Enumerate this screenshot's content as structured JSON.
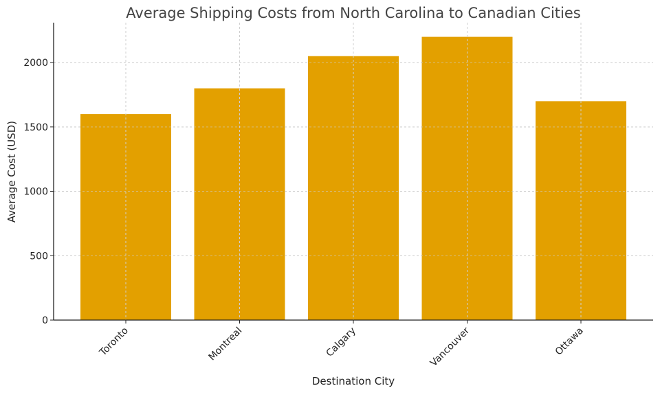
{
  "chart_data": {
    "type": "bar",
    "title": "Average Shipping Costs from North Carolina to Canadian Cities",
    "xlabel": "Destination City",
    "ylabel": "Average Cost (USD)",
    "categories": [
      "Toronto",
      "Montreal",
      "Calgary",
      "Vancouver",
      "Ottawa"
    ],
    "values": [
      1600,
      1800,
      2050,
      2200,
      1700
    ],
    "ylim": [
      0,
      2310
    ],
    "yticks": [
      0,
      500,
      1000,
      1500,
      2000
    ],
    "grid": true,
    "bar_color": "#e3a000",
    "legend": "none"
  }
}
